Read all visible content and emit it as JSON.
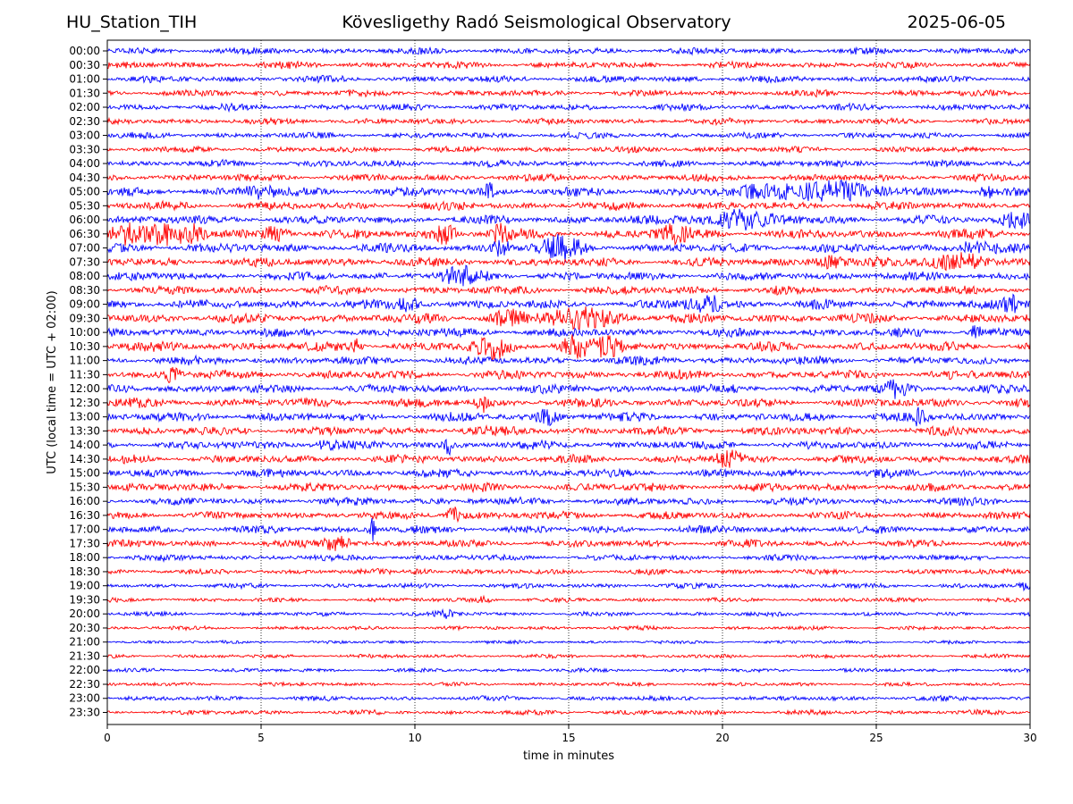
{
  "header": {
    "station": "HU_Station_TIH",
    "observatory": "Kövesligethy Radó Seismological Observatory",
    "date": "2025-06-05"
  },
  "chart_data": {
    "type": "line",
    "xlabel": "time in minutes",
    "ylabel": "UTC (local time = UTC + 02:00)",
    "xlim": [
      0,
      30
    ],
    "xticks": [
      0,
      5,
      10,
      15,
      20,
      25,
      30
    ],
    "grid_x": "dotted vertical lines at every tick",
    "row_labels": [
      "00:00",
      "00:30",
      "01:00",
      "01:30",
      "02:00",
      "02:30",
      "03:00",
      "03:30",
      "04:00",
      "04:30",
      "05:00",
      "05:30",
      "06:00",
      "06:30",
      "07:00",
      "07:30",
      "08:00",
      "08:30",
      "09:00",
      "09:30",
      "10:00",
      "10:30",
      "11:00",
      "11:30",
      "12:00",
      "12:30",
      "13:00",
      "13:30",
      "14:00",
      "14:30",
      "15:00",
      "15:30",
      "16:00",
      "16:30",
      "17:00",
      "17:30",
      "18:00",
      "18:30",
      "19:00",
      "19:30",
      "20:00",
      "20:30",
      "21:00",
      "21:30",
      "22:00",
      "22:30",
      "23:00",
      "23:30"
    ],
    "colors": [
      "#0000ff",
      "#ff0000"
    ],
    "row_amplitude": [
      0.6,
      0.6,
      0.6,
      0.6,
      0.6,
      0.55,
      0.55,
      0.55,
      0.6,
      0.65,
      0.8,
      0.75,
      0.8,
      0.85,
      0.85,
      0.8,
      0.8,
      0.75,
      0.85,
      0.85,
      0.8,
      0.85,
      0.75,
      0.8,
      0.8,
      0.8,
      0.8,
      0.8,
      0.75,
      0.75,
      0.75,
      0.75,
      0.7,
      0.7,
      0.7,
      0.65,
      0.55,
      0.5,
      0.45,
      0.4,
      0.4,
      0.35,
      0.3,
      0.35,
      0.35,
      0.35,
      0.45,
      0.45
    ],
    "events": [
      {
        "row": "05:00",
        "x": 12.4,
        "amp": 2.0,
        "width": 0.15
      },
      {
        "row": "05:00",
        "x": 5.0,
        "amp": 1.3,
        "width": 0.5
      },
      {
        "row": "05:00",
        "x": 23.0,
        "amp": 2.0,
        "width": 2.0
      },
      {
        "row": "05:00",
        "x": 28.6,
        "amp": 1.2,
        "width": 0.2
      },
      {
        "row": "06:00",
        "x": 20.5,
        "amp": 1.7,
        "width": 1.3
      },
      {
        "row": "06:00",
        "x": 29.5,
        "amp": 1.6,
        "width": 0.5
      },
      {
        "row": "06:30",
        "x": 0.7,
        "amp": 2.3,
        "width": 0.6
      },
      {
        "row": "06:30",
        "x": 1.8,
        "amp": 2.0,
        "width": 0.4
      },
      {
        "row": "06:30",
        "x": 2.7,
        "amp": 1.8,
        "width": 0.4
      },
      {
        "row": "06:30",
        "x": 5.5,
        "amp": 1.3,
        "width": 0.4
      },
      {
        "row": "06:30",
        "x": 10.9,
        "amp": 1.8,
        "width": 0.4
      },
      {
        "row": "06:30",
        "x": 12.8,
        "amp": 1.8,
        "width": 0.3
      },
      {
        "row": "06:30",
        "x": 18.4,
        "amp": 1.5,
        "width": 0.5
      },
      {
        "row": "07:00",
        "x": 14.8,
        "amp": 2.2,
        "width": 0.6
      },
      {
        "row": "07:00",
        "x": 12.8,
        "amp": 1.4,
        "width": 0.3
      },
      {
        "row": "07:00",
        "x": 28.2,
        "amp": 1.3,
        "width": 0.5
      },
      {
        "row": "07:30",
        "x": 27.6,
        "amp": 1.6,
        "width": 1.0
      },
      {
        "row": "07:30",
        "x": 23.5,
        "amp": 1.3,
        "width": 0.5
      },
      {
        "row": "08:00",
        "x": 11.5,
        "amp": 1.4,
        "width": 0.7
      },
      {
        "row": "09:00",
        "x": 19.5,
        "amp": 1.5,
        "width": 0.6
      },
      {
        "row": "09:00",
        "x": 29.5,
        "amp": 1.3,
        "width": 0.4
      },
      {
        "row": "09:00",
        "x": 9.8,
        "amp": 1.2,
        "width": 0.4
      },
      {
        "row": "09:30",
        "x": 15.5,
        "amp": 1.8,
        "width": 1.2
      },
      {
        "row": "09:30",
        "x": 13.0,
        "amp": 1.3,
        "width": 0.5
      },
      {
        "row": "10:00",
        "x": 28.2,
        "amp": 1.6,
        "width": 0.2
      },
      {
        "row": "10:30",
        "x": 12.5,
        "amp": 2.3,
        "width": 0.5
      },
      {
        "row": "10:30",
        "x": 15.2,
        "amp": 2.0,
        "width": 0.5
      },
      {
        "row": "10:30",
        "x": 16.3,
        "amp": 1.8,
        "width": 0.4
      },
      {
        "row": "10:30",
        "x": 8.1,
        "amp": 1.5,
        "width": 0.15
      },
      {
        "row": "11:30",
        "x": 2.1,
        "amp": 1.5,
        "width": 0.3
      },
      {
        "row": "12:00",
        "x": 25.6,
        "amp": 1.5,
        "width": 0.4
      },
      {
        "row": "12:30",
        "x": 12.2,
        "amp": 1.5,
        "width": 0.2
      },
      {
        "row": "13:00",
        "x": 14.3,
        "amp": 1.5,
        "width": 0.3
      },
      {
        "row": "13:00",
        "x": 26.3,
        "amp": 1.4,
        "width": 0.3
      },
      {
        "row": "14:00",
        "x": 11.1,
        "amp": 1.8,
        "width": 0.15
      },
      {
        "row": "14:00",
        "x": 7.2,
        "amp": 1.2,
        "width": 0.4
      },
      {
        "row": "14:30",
        "x": 20.2,
        "amp": 1.8,
        "width": 0.4
      },
      {
        "row": "16:30",
        "x": 11.3,
        "amp": 2.2,
        "width": 0.25
      },
      {
        "row": "17:00",
        "x": 8.6,
        "amp": 3.0,
        "width": 0.1
      },
      {
        "row": "17:30",
        "x": 7.5,
        "amp": 2.2,
        "width": 0.4
      },
      {
        "row": "18:30",
        "x": 10.3,
        "amp": 1.3,
        "width": 0.3
      },
      {
        "row": "19:30",
        "x": 12.2,
        "amp": 1.7,
        "width": 0.25
      },
      {
        "row": "20:00",
        "x": 11.0,
        "amp": 1.7,
        "width": 0.3
      },
      {
        "row": "19:00",
        "x": 29.8,
        "amp": 1.2,
        "width": 0.2
      }
    ]
  }
}
